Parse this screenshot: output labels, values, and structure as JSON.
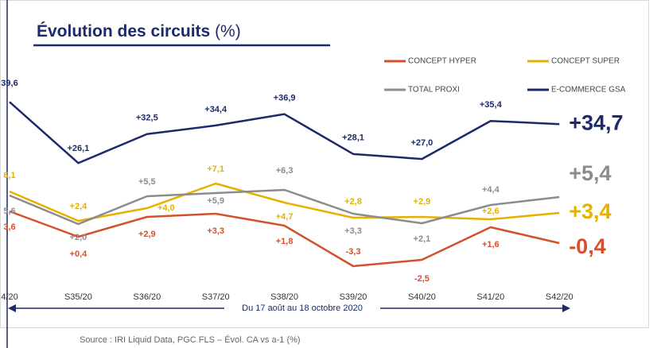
{
  "chart_data": {
    "type": "line",
    "title": "Évolution des circuits",
    "title_unit": "(%)",
    "categories": [
      "4/20",
      "S35/20",
      "S36/20",
      "S37/20",
      "S38/20",
      "S39/20",
      "S40/20",
      "S41/20",
      "S42/20"
    ],
    "series": [
      {
        "name": "CONCEPT HYPER",
        "color": "#d4502c",
        "values": [
          3.6,
          0.4,
          2.9,
          3.3,
          1.8,
          -3.3,
          -2.5,
          1.6,
          -0.4
        ],
        "value_labels": [
          "3,6",
          "+0,4",
          "+2,9",
          "+3,3",
          "+1,8",
          "-3,3",
          "-2,5",
          "+1,6",
          "-0,4"
        ]
      },
      {
        "name": "CONCEPT SUPER",
        "color": "#e6b000",
        "values": [
          6.1,
          2.4,
          4.0,
          7.1,
          4.7,
          2.8,
          2.9,
          2.6,
          3.4
        ],
        "value_labels": [
          "6,1",
          "+2,4",
          "+4,0",
          "+7,1",
          "+4,7",
          "+2,8",
          "+2,9",
          "+2,6",
          "+3,4"
        ]
      },
      {
        "name": "TOTAL PROXI",
        "color": "#8c8c8c",
        "values": [
          5.6,
          2.0,
          5.5,
          5.9,
          6.3,
          3.3,
          2.1,
          4.4,
          5.4
        ],
        "value_labels": [
          "5,6",
          "+2,0",
          "+5,5",
          "+5,9",
          "+6,3",
          "+3,3",
          "+2,1",
          "+4,4",
          "+5,4"
        ]
      },
      {
        "name": "E-COMMERCE GSA",
        "color": "#1c2a6b",
        "axis": "y2",
        "values": [
          39.6,
          26.1,
          32.5,
          34.4,
          36.9,
          28.1,
          27.0,
          35.4,
          34.7
        ],
        "value_labels": [
          "39,6",
          "+26,1",
          "+32,5",
          "+34,4",
          "+36,9",
          "+28,1",
          "+27,0",
          "+35,4",
          "+34,7"
        ]
      }
    ],
    "ylim": [
      -6,
      12
    ],
    "y2lim": [
      20,
      45
    ],
    "annotation": "Du 17 août au 18 octobre 2020",
    "source": "Source : IRI Liquid Data, PGC FLS – Évol. CA vs a-1 (%)"
  }
}
